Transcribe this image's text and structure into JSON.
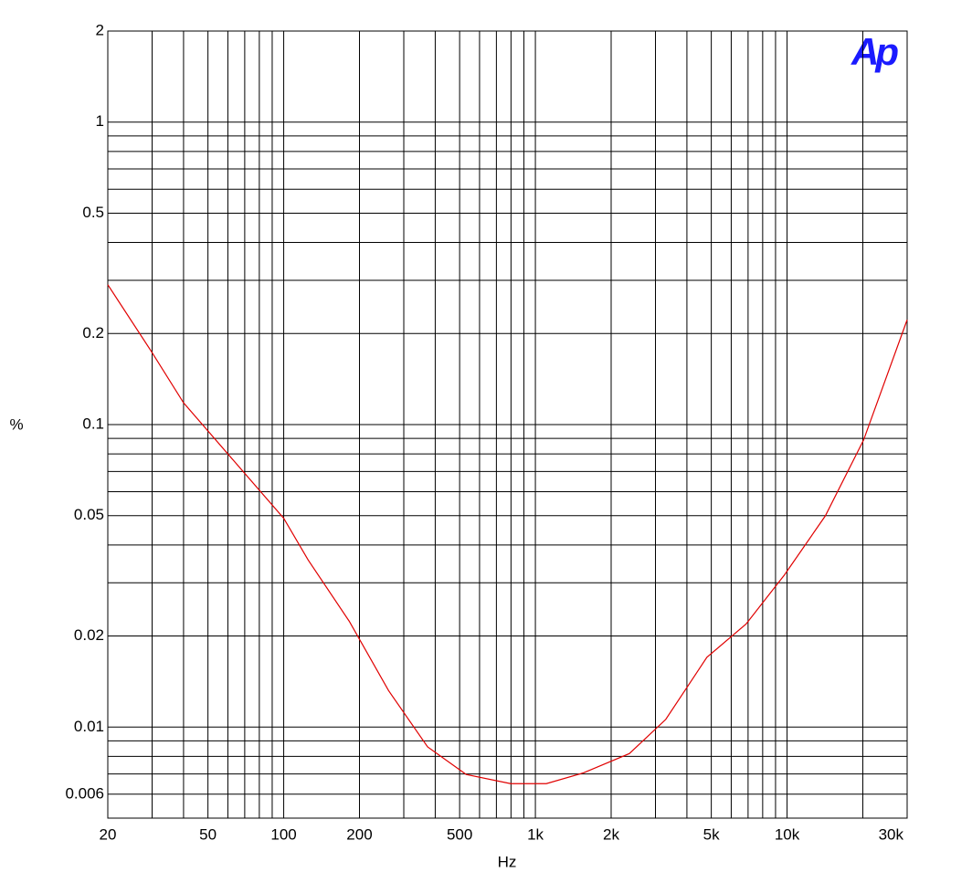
{
  "chart_data": {
    "type": "line",
    "xlabel": "Hz",
    "ylabel": "%",
    "logo": "Ap",
    "x": [
      20,
      30,
      40,
      100,
      125,
      182,
      261,
      373,
      531,
      798,
      1105,
      1556,
      2362,
      3296,
      4800,
      6870,
      9750,
      14190,
      20140,
      30000
    ],
    "series": [
      {
        "color": "#e00000",
        "values": [
          0.29,
          0.173,
          0.118,
          0.049,
          0.0357,
          0.0224,
          0.0132,
          0.0086,
          0.00697,
          0.0065,
          0.0065,
          0.00706,
          0.00817,
          0.0106,
          0.017,
          0.0219,
          0.0318,
          0.0499,
          0.0889,
          0.222
        ]
      }
    ],
    "xlim": [
      20,
      30000
    ],
    "ylim": [
      0.005,
      2
    ],
    "xlog": true,
    "ylog": true,
    "grid": true,
    "xticks": [
      20,
      50,
      100,
      200,
      500,
      {
        "value": 1000,
        "label": "1k"
      },
      {
        "value": 2000,
        "label": "2k"
      },
      {
        "value": 5000,
        "label": "5k"
      },
      {
        "value": 10000,
        "label": "10k"
      },
      {
        "value": 30000,
        "label": "30k"
      }
    ],
    "yticks": [
      2,
      1,
      0.5,
      0.2,
      0.1,
      0.05,
      0.02,
      0.01,
      0.006
    ],
    "xgrid": [
      30,
      40,
      50,
      60,
      70,
      80,
      90,
      100,
      200,
      300,
      400,
      500,
      600,
      700,
      800,
      900,
      1000,
      2000,
      3000,
      4000,
      5000,
      6000,
      7000,
      8000,
      9000,
      10000,
      20000
    ],
    "ygrid": [
      0.006,
      0.007,
      0.008,
      0.009,
      0.01,
      0.02,
      0.03,
      0.04,
      0.05,
      0.06,
      0.07,
      0.08,
      0.09,
      0.1,
      0.2,
      0.3,
      0.4,
      0.5,
      0.6,
      0.7,
      0.8,
      0.9,
      1
    ]
  }
}
